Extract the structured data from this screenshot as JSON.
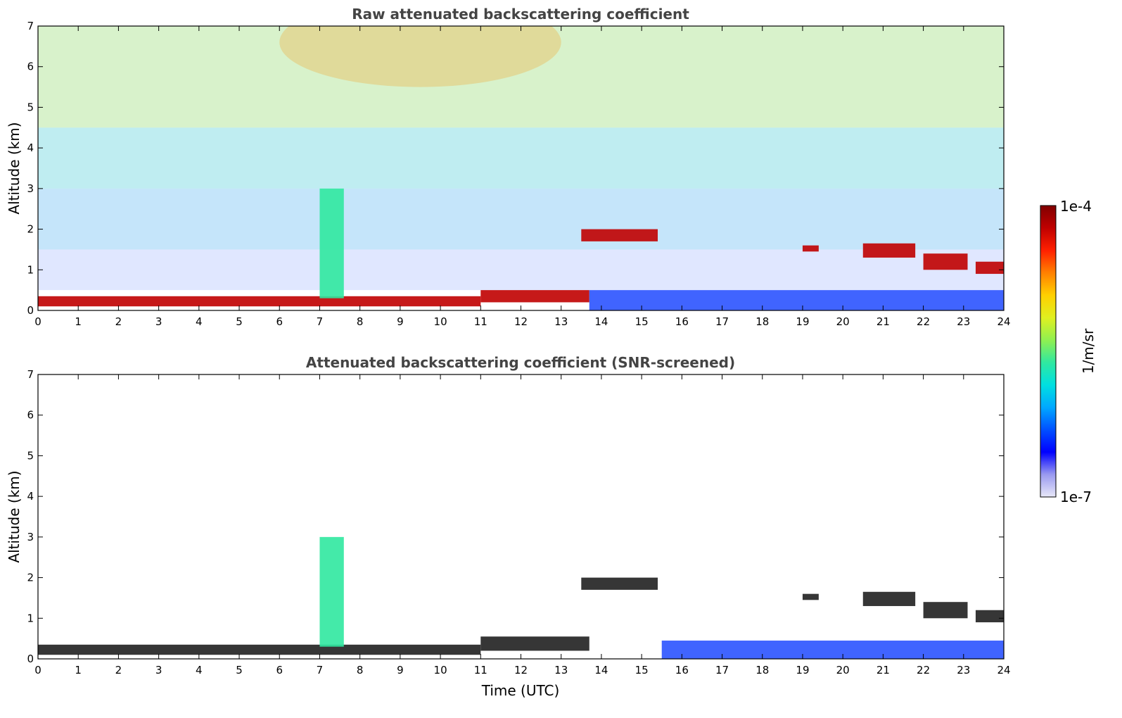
{
  "chart_data": [
    {
      "type": "heatmap",
      "title": "Raw attenuated backscattering coefficient",
      "xlabel": "",
      "ylabel": "Altitude (km)",
      "xlim": [
        0,
        24
      ],
      "ylim": [
        0,
        7
      ],
      "x_ticks": [
        0,
        1,
        2,
        3,
        4,
        5,
        6,
        7,
        8,
        9,
        10,
        11,
        12,
        13,
        14,
        15,
        16,
        17,
        18,
        19,
        20,
        21,
        22,
        23,
        24
      ],
      "y_ticks": [
        0,
        1,
        2,
        3,
        4,
        5,
        6,
        7
      ],
      "features": [
        {
          "time_start": 0,
          "time_end": 11,
          "alt_bottom": 0.1,
          "alt_top": 0.35,
          "level": "high"
        },
        {
          "time_start": 11,
          "time_end": 13.7,
          "alt_bottom": 0.2,
          "alt_top": 0.5,
          "level": "high"
        },
        {
          "time_start": 13.5,
          "time_end": 15.4,
          "alt_bottom": 1.7,
          "alt_top": 2.0,
          "level": "high"
        },
        {
          "time_start": 19.0,
          "time_end": 19.4,
          "alt_bottom": 1.45,
          "alt_top": 1.6,
          "level": "high"
        },
        {
          "time_start": 20.5,
          "time_end": 21.8,
          "alt_bottom": 1.3,
          "alt_top": 1.65,
          "level": "high"
        },
        {
          "time_start": 22.0,
          "time_end": 23.1,
          "alt_bottom": 1.0,
          "alt_top": 1.4,
          "level": "high"
        },
        {
          "time_start": 23.3,
          "time_end": 24.0,
          "alt_bottom": 0.9,
          "alt_top": 1.2,
          "level": "high"
        },
        {
          "time_start": 7.0,
          "time_end": 7.6,
          "alt_bottom": 0.3,
          "alt_top": 3.0,
          "level": "mid"
        },
        {
          "time_start": 13.7,
          "time_end": 24.0,
          "alt_bottom": 0.0,
          "alt_top": 0.5,
          "level": "low"
        }
      ]
    },
    {
      "type": "heatmap",
      "title": "Attenuated backscattering coefficient (SNR-screened)",
      "xlabel": "Time (UTC)",
      "ylabel": "Altitude (km)",
      "xlim": [
        0,
        24
      ],
      "ylim": [
        0,
        7
      ],
      "x_ticks": [
        0,
        1,
        2,
        3,
        4,
        5,
        6,
        7,
        8,
        9,
        10,
        11,
        12,
        13,
        14,
        15,
        16,
        17,
        18,
        19,
        20,
        21,
        22,
        23,
        24
      ],
      "y_ticks": [
        0,
        1,
        2,
        3,
        4,
        5,
        6,
        7
      ],
      "features": [
        {
          "time_start": 0,
          "time_end": 11,
          "alt_bottom": 0.1,
          "alt_top": 0.35,
          "level": "high"
        },
        {
          "time_start": 11,
          "time_end": 13.7,
          "alt_bottom": 0.2,
          "alt_top": 0.55,
          "level": "high"
        },
        {
          "time_start": 13.5,
          "time_end": 15.4,
          "alt_bottom": 1.7,
          "alt_top": 2.0,
          "level": "high"
        },
        {
          "time_start": 19.0,
          "time_end": 19.4,
          "alt_bottom": 1.45,
          "alt_top": 1.6,
          "level": "high"
        },
        {
          "time_start": 20.5,
          "time_end": 21.8,
          "alt_bottom": 1.3,
          "alt_top": 1.65,
          "level": "high"
        },
        {
          "time_start": 22.0,
          "time_end": 23.1,
          "alt_bottom": 1.0,
          "alt_top": 1.4,
          "level": "high"
        },
        {
          "time_start": 23.3,
          "time_end": 24.0,
          "alt_bottom": 0.9,
          "alt_top": 1.2,
          "level": "high"
        },
        {
          "time_start": 7.0,
          "time_end": 7.6,
          "alt_bottom": 0.3,
          "alt_top": 3.0,
          "level": "mid"
        },
        {
          "time_start": 15.5,
          "time_end": 24.0,
          "alt_bottom": 0.0,
          "alt_top": 0.45,
          "level": "low"
        }
      ]
    }
  ],
  "colorbar": {
    "label": "1/m/sr",
    "min_label": "1e-7",
    "max_label": "1e-4",
    "colors": [
      "#e8e8f8",
      "#9a9af0",
      "#0000ff",
      "#0050ff",
      "#00a8ff",
      "#00e0e0",
      "#30e8a0",
      "#90f050",
      "#e0f020",
      "#ffd000",
      "#ff8000",
      "#ff2000",
      "#c00000",
      "#800000"
    ]
  }
}
